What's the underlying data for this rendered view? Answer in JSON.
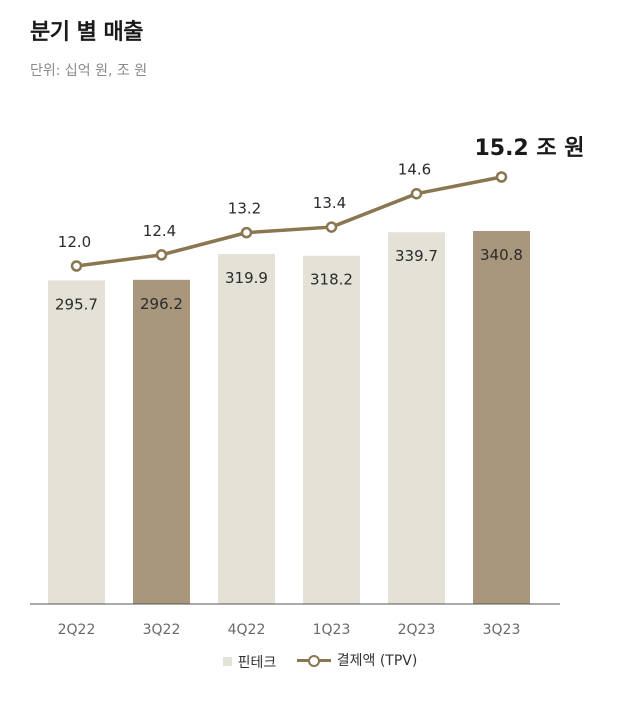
{
  "title": "분기 별 매출",
  "subtitle": "단위: 십억 원, 조 원",
  "colors": {
    "bar_light": "#e4e1d6",
    "bar_dark": "#a8977c",
    "line": "#8a7650",
    "axis": "#555555"
  },
  "chart_data": {
    "type": "bar",
    "categories": [
      "2Q22",
      "3Q22",
      "4Q22",
      "1Q23",
      "2Q23",
      "3Q23"
    ],
    "series": [
      {
        "name": "핀테크",
        "type": "bar",
        "values": [
          295.7,
          296.2,
          319.9,
          318.2,
          339.7,
          340.8
        ],
        "highlight": [
          "3Q22",
          "3Q23"
        ]
      },
      {
        "name": "결제액 (TPV)",
        "type": "line",
        "values": [
          12.0,
          12.4,
          13.2,
          13.4,
          14.6,
          15.2
        ]
      }
    ],
    "bar_labels": [
      "295.7",
      "296.2",
      "319.9",
      "318.2",
      "339.7",
      "340.8"
    ],
    "line_labels": [
      "12.0",
      "12.4",
      "13.2",
      "13.4",
      "14.6",
      "15.2 조 원"
    ],
    "legend_position": "bottom-center",
    "grid": false
  }
}
